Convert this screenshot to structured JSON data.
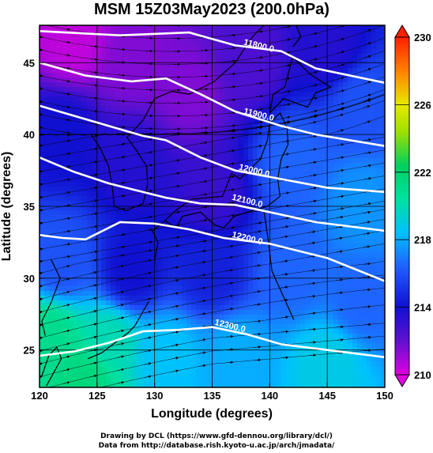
{
  "chart_data": {
    "type": "heatmap",
    "title": "MSM 15Z03May2023 (200.0hPa)",
    "xlabel": "Longitude (degrees)",
    "ylabel": "Latitude  (degrees)",
    "xlim": [
      120,
      150
    ],
    "ylim": [
      22.4,
      47.6
    ],
    "x_ticks": [
      "120",
      "125",
      "130",
      "135",
      "140",
      "145",
      "150"
    ],
    "y_ticks": [
      "25",
      "30",
      "35",
      "40",
      "45"
    ],
    "y_tick_values": [
      25,
      30,
      35,
      40,
      45
    ],
    "x_tick_values": [
      120,
      125,
      130,
      135,
      140,
      145,
      150
    ],
    "grid": true,
    "colorbar": {
      "labels": [
        "210",
        "214",
        "218",
        "222",
        "226",
        "230"
      ],
      "values": [
        210,
        214,
        218,
        222,
        226,
        230
      ],
      "range": [
        210,
        230
      ],
      "colors": [
        "#e000e0",
        "#1010d0",
        "#00c0ff",
        "#00d060",
        "#e8e800",
        "#ff2000"
      ]
    },
    "contours": [
      {
        "label": "11800.0",
        "value": 11800,
        "label_at": [
          139.0,
          46.0
        ],
        "points": [
          [
            120,
            47.2
          ],
          [
            127,
            46.9
          ],
          [
            133,
            47.1
          ],
          [
            137,
            46.2
          ],
          [
            141,
            45.8
          ],
          [
            144,
            44.6
          ],
          [
            150,
            43.6
          ]
        ]
      },
      {
        "label": "11900.0",
        "value": 11900,
        "label_at": [
          139.0,
          41.2
        ],
        "points": [
          [
            120,
            45.0
          ],
          [
            124,
            44.1
          ],
          [
            128,
            43.7
          ],
          [
            131,
            43.9
          ],
          [
            134,
            42.8
          ],
          [
            137,
            41.6
          ],
          [
            141,
            40.6
          ],
          [
            144,
            40.0
          ],
          [
            150,
            39.2
          ]
        ]
      },
      {
        "label": "12000.0",
        "value": 12000,
        "label_at": [
          138.6,
          37.3
        ],
        "points": [
          [
            120,
            42.0
          ],
          [
            123,
            41.3
          ],
          [
            126,
            40.6
          ],
          [
            129,
            39.9
          ],
          [
            131,
            39.6
          ],
          [
            134,
            38.4
          ],
          [
            137,
            37.5
          ],
          [
            141,
            36.9
          ],
          [
            145,
            36.3
          ],
          [
            150,
            36.0
          ]
        ]
      },
      {
        "label": "12100.0",
        "value": 12100,
        "label_at": [
          138.0,
          35.2
        ],
        "points": [
          [
            120,
            38.4
          ],
          [
            123,
            37.4
          ],
          [
            126,
            36.6
          ],
          [
            128,
            36.2
          ],
          [
            131,
            35.6
          ],
          [
            134,
            35.2
          ],
          [
            137,
            35.1
          ],
          [
            140,
            34.6
          ],
          [
            144,
            33.9
          ],
          [
            150,
            33.3
          ]
        ]
      },
      {
        "label": "12200.0",
        "value": 12200,
        "label_at": [
          138.0,
          32.6
        ],
        "points": [
          [
            120,
            33.0
          ],
          [
            122,
            32.8
          ],
          [
            124,
            32.7
          ],
          [
            127,
            33.9
          ],
          [
            130,
            33.8
          ],
          [
            133,
            33.4
          ],
          [
            136,
            32.8
          ],
          [
            140,
            32.4
          ],
          [
            145,
            31.4
          ],
          [
            150,
            29.8
          ]
        ]
      },
      {
        "label": "12300.0",
        "value": 12300,
        "label_at": [
          136.5,
          26.5
        ],
        "points": [
          [
            120,
            24.6
          ],
          [
            123,
            24.9
          ],
          [
            126,
            25.5
          ],
          [
            129,
            26.3
          ],
          [
            132,
            26.4
          ],
          [
            135,
            26.6
          ],
          [
            138,
            26.1
          ],
          [
            141,
            25.4
          ],
          [
            145,
            25.0
          ],
          [
            150,
            24.5
          ]
        ]
      }
    ],
    "temperature_field": {
      "description_values_K": [
        210,
        230
      ],
      "anchor_points": [
        {
          "lon": 123,
          "lat": 46.5,
          "value": 210.5
        },
        {
          "lon": 128,
          "lat": 45.0,
          "value": 211.5
        },
        {
          "lon": 133,
          "lat": 43.0,
          "value": 211.5
        },
        {
          "lon": 138,
          "lat": 45.0,
          "value": 212.5
        },
        {
          "lon": 145,
          "lat": 46.0,
          "value": 213.5
        },
        {
          "lon": 148,
          "lat": 42.0,
          "value": 216.0
        },
        {
          "lon": 122,
          "lat": 40.0,
          "value": 214.0
        },
        {
          "lon": 128,
          "lat": 38.0,
          "value": 213.5
        },
        {
          "lon": 135,
          "lat": 36.0,
          "value": 213.0
        },
        {
          "lon": 142,
          "lat": 38.0,
          "value": 216.5
        },
        {
          "lon": 148,
          "lat": 35.0,
          "value": 217.5
        },
        {
          "lon": 122,
          "lat": 31.0,
          "value": 216.0
        },
        {
          "lon": 128,
          "lat": 30.5,
          "value": 214.0
        },
        {
          "lon": 135,
          "lat": 30.5,
          "value": 214.5
        },
        {
          "lon": 142,
          "lat": 30.5,
          "value": 216.5
        },
        {
          "lon": 148,
          "lat": 28.5,
          "value": 216.5
        },
        {
          "lon": 121,
          "lat": 26.0,
          "value": 221.0
        },
        {
          "lon": 126,
          "lat": 25.5,
          "value": 220.0
        },
        {
          "lon": 131,
          "lat": 24.5,
          "value": 218.5
        },
        {
          "lon": 137,
          "lat": 24.5,
          "value": 218.0
        },
        {
          "lon": 145,
          "lat": 24.0,
          "value": 219.0
        },
        {
          "lon": 124,
          "lat": 23.0,
          "value": 221.5
        }
      ]
    },
    "wind_direction_note": "streamlines roughly west-southwest to east-northeast"
  },
  "credits": {
    "line1": "Drawing by DCL (https://www.gfd-dennou.org/library/dcl/)",
    "line2": "Data from http://database.rish.kyoto-u.ac.jp/arch/jmadata/"
  }
}
